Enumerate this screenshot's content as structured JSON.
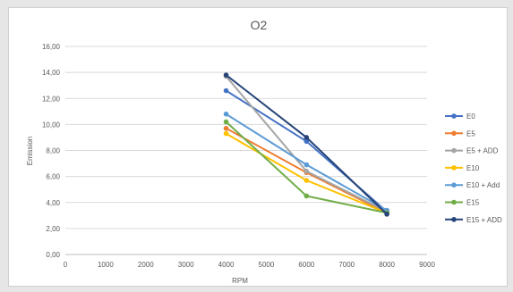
{
  "chart_data": {
    "type": "line",
    "title": "O2",
    "xlabel": "RPM",
    "ylabel": "Emission",
    "xlim": [
      0,
      9000
    ],
    "ylim": [
      0,
      16
    ],
    "x_ticks": [
      "0",
      "1000",
      "2000",
      "3000",
      "4000",
      "5000",
      "6000",
      "7000",
      "8000",
      "9000"
    ],
    "y_ticks": [
      "0,00",
      "2,00",
      "4,00",
      "6,00",
      "8,00",
      "10,00",
      "12,00",
      "14,00",
      "16,00"
    ],
    "grid": "horizontal",
    "legend_position": "right",
    "x": [
      4000,
      6000,
      8000
    ],
    "series": [
      {
        "name": "E0",
        "color": "#4472c4",
        "values": [
          12.6,
          8.7,
          3.3
        ]
      },
      {
        "name": "E5",
        "color": "#ed7d31",
        "values": [
          9.7,
          6.3,
          3.2
        ]
      },
      {
        "name": "E5 + ADD",
        "color": "#a5a5a5",
        "values": [
          13.7,
          6.4,
          3.3
        ]
      },
      {
        "name": "E10",
        "color": "#ffc000",
        "values": [
          9.3,
          5.7,
          3.2
        ]
      },
      {
        "name": "E10 + Add",
        "color": "#5b9bd5",
        "values": [
          10.8,
          6.9,
          3.4
        ]
      },
      {
        "name": "E15",
        "color": "#70ad47",
        "values": [
          10.2,
          4.5,
          3.2
        ]
      },
      {
        "name": "E15 + ADD",
        "color": "#264478",
        "values": [
          13.8,
          9.0,
          3.1
        ]
      }
    ]
  }
}
